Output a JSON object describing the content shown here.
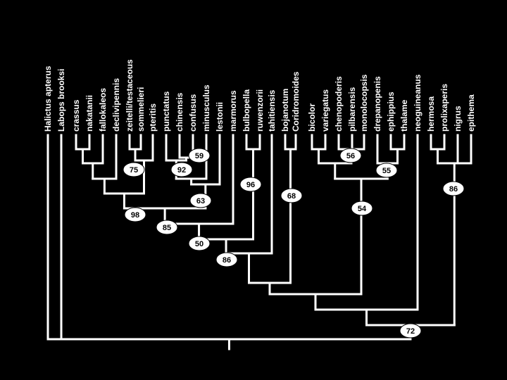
{
  "diagram": {
    "type": "cladogram",
    "colors": {
      "background": "#000000",
      "branch": "#ffffff",
      "label": "#ffffff",
      "support_fill": "#ffffff",
      "support_text": "#000000"
    },
    "taxa": [
      "Halictus apterus",
      "Labops brooksi",
      "crassus",
      "nakatanii",
      "fallokaleos",
      "declivipennis",
      "zeitelli/testaceous",
      "sommelieri",
      "pteritis",
      "punctatus",
      "chinensis",
      "confusus",
      "minusculus",
      "lestonii",
      "marmorus",
      "bulbopella",
      "ruwenzorii",
      "tahitiensis",
      "bojanotum",
      "Coridromoides",
      "bicolor",
      "variegatus",
      "chenopoderis",
      "pilbarensis",
      "monolocopsis",
      "drepanopenis",
      "ephippius",
      "thalame",
      "neoguineanus",
      "hermosa",
      "prolixaperis",
      "nigrus",
      "epithema"
    ],
    "clades": [
      {
        "id": "c_crassus_nakatanii",
        "children": [
          "t2",
          "t3"
        ]
      },
      {
        "id": "c_fallo",
        "children": [
          "c_crassus_nakatanii",
          "t4"
        ]
      },
      {
        "id": "c_decliv",
        "children": [
          "c_fallo",
          "t5"
        ]
      },
      {
        "id": "c_zeit_somm",
        "children": [
          "t6",
          "t7"
        ]
      },
      {
        "id": "c_75",
        "children": [
          "c_zeit_somm",
          "t8"
        ],
        "support": "75"
      },
      {
        "id": "c_A",
        "children": [
          "c_decliv",
          "c_75"
        ]
      },
      {
        "id": "c_59",
        "children": [
          "t10",
          "t11"
        ],
        "support": "59"
      },
      {
        "id": "c_92",
        "children": [
          "t9",
          "c_59"
        ],
        "support": "92"
      },
      {
        "id": "c_min",
        "children": [
          "c_92",
          "t12"
        ]
      },
      {
        "id": "c_63",
        "children": [
          "c_min",
          "t13"
        ],
        "support": "63"
      },
      {
        "id": "c_98",
        "children": [
          "c_A",
          "c_63"
        ],
        "support": "98"
      },
      {
        "id": "c_85",
        "children": [
          "c_98",
          "t14"
        ],
        "support": "85"
      },
      {
        "id": "c_bul_ruw",
        "children": [
          "t15",
          "t16"
        ]
      },
      {
        "id": "c_96",
        "children": [
          "c_bul_ruw"
        ],
        "support": "96"
      },
      {
        "id": "c_50",
        "children": [
          "c_85",
          "c_96"
        ],
        "support": "50"
      },
      {
        "id": "c_86a",
        "children": [
          "c_50",
          "t17"
        ],
        "support": "86"
      },
      {
        "id": "c_68",
        "children": [
          "t18",
          "t19"
        ],
        "support": "68"
      },
      {
        "id": "c_X",
        "children": [
          "c_86a",
          "c_68"
        ]
      },
      {
        "id": "c_bic_var",
        "children": [
          "t20",
          "t21"
        ]
      },
      {
        "id": "c_56",
        "children": [
          "t22",
          "t23",
          "t24"
        ],
        "support": "56"
      },
      {
        "id": "c_B1",
        "children": [
          "c_bic_var",
          "c_56"
        ]
      },
      {
        "id": "c_eph_tha",
        "children": [
          "t26",
          "t27"
        ]
      },
      {
        "id": "c_55",
        "children": [
          "t25",
          "c_eph_tha"
        ],
        "support": "55"
      },
      {
        "id": "c_54",
        "children": [
          "c_B1",
          "c_55"
        ],
        "support": "54"
      },
      {
        "id": "c_Y",
        "children": [
          "c_X",
          "c_54"
        ]
      },
      {
        "id": "c_her_pro",
        "children": [
          "t29",
          "t30"
        ]
      },
      {
        "id": "c_86b",
        "children": [
          "c_her_pro",
          "t31",
          "t32"
        ],
        "support": "86"
      },
      {
        "id": "c_Z",
        "children": [
          "c_Y",
          "t28"
        ]
      },
      {
        "id": "c_72",
        "children": [
          "c_Z",
          "c_86b"
        ],
        "support": "72"
      },
      {
        "id": "root",
        "children": [
          "t0",
          "t1",
          "c_72"
        ]
      }
    ]
  }
}
